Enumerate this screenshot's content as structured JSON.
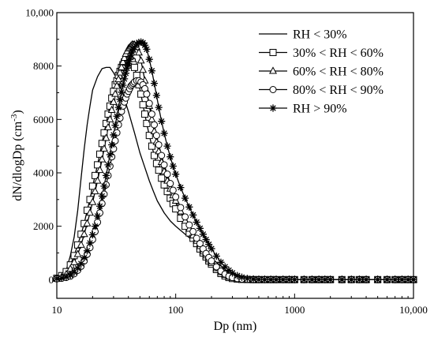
{
  "chart_data": {
    "type": "line",
    "xscale": "log",
    "xlabel": "Dp (nm)",
    "ylabel_main": "dN/dlogDp (cm",
    "ylabel_sup": "-3",
    "ylabel_close": ")",
    "xlim": [
      10,
      10000
    ],
    "ylim": [
      -700,
      10000
    ],
    "x_ticks": [
      10,
      100,
      1000,
      10000
    ],
    "x_tick_labels": [
      "10",
      "100",
      "1000",
      "10,000"
    ],
    "y_ticks": [
      0,
      2000,
      4000,
      6000,
      8000,
      10000
    ],
    "y_tick_labels": [
      "0",
      "2000",
      "4000",
      "6000",
      "8000",
      "10,000"
    ],
    "legend_position": "top-right",
    "series": [
      {
        "name": "RH < 30%",
        "marker": "none",
        "color": "#000000",
        "x": [
          10,
          11,
          12,
          13,
          14,
          15,
          16,
          17,
          18,
          19,
          20,
          22,
          24,
          26,
          28,
          30,
          33,
          36,
          40,
          45,
          50,
          55,
          60,
          65,
          70,
          80,
          90,
          100,
          120,
          140,
          160,
          180,
          200,
          250,
          300,
          350,
          400,
          500,
          1000,
          2000,
          5000,
          10000
        ],
        "y": [
          0,
          80,
          350,
          900,
          1600,
          2600,
          3800,
          4900,
          5800,
          6500,
          7100,
          7600,
          7900,
          7950,
          7950,
          7750,
          7400,
          6950,
          6300,
          5500,
          4750,
          4200,
          3700,
          3300,
          2950,
          2500,
          2200,
          2000,
          1700,
          1450,
          1200,
          1000,
          800,
          450,
          150,
          40,
          10,
          0,
          0,
          0,
          0,
          0
        ]
      },
      {
        "name": "30% < RH < 60%",
        "marker": "square",
        "color": "#000000",
        "x": [
          10,
          11,
          12,
          13,
          14,
          15,
          16,
          17,
          18,
          19,
          20,
          21,
          22,
          23,
          24,
          25,
          26,
          27,
          28,
          29,
          30,
          31,
          32,
          33,
          34,
          35,
          36,
          37,
          38,
          39,
          40,
          41,
          42,
          43,
          44,
          45,
          47,
          49,
          51,
          53,
          55,
          57,
          60,
          63,
          66,
          69,
          72,
          76,
          80,
          85,
          90,
          95,
          100,
          110,
          120,
          130,
          140,
          150,
          160,
          170,
          180,
          190,
          200,
          220,
          240,
          260,
          280,
          300,
          330,
          360,
          400,
          450,
          500,
          560,
          630,
          700,
          800,
          900,
          1000,
          1200,
          1400,
          1600,
          1800,
          2000,
          2500,
          3000,
          3500,
          4000,
          5000,
          6000,
          7000,
          8000,
          9000,
          10000
        ],
        "y": [
          50,
          150,
          300,
          550,
          900,
          1300,
          1700,
          2100,
          2600,
          3000,
          3500,
          3900,
          4300,
          4700,
          5100,
          5500,
          5850,
          6200,
          6500,
          6800,
          7050,
          7300,
          7450,
          7650,
          7800,
          7950,
          8050,
          8150,
          8200,
          8250,
          8250,
          8250,
          8200,
          8150,
          8050,
          7950,
          7650,
          7300,
          6950,
          6550,
          6200,
          5850,
          5400,
          5000,
          4650,
          4350,
          4100,
          3800,
          3550,
          3300,
          3050,
          2850,
          2650,
          2300,
          2000,
          1750,
          1550,
          1350,
          1150,
          1000,
          850,
          700,
          580,
          380,
          230,
          140,
          80,
          45,
          20,
          10,
          5,
          0,
          0,
          0,
          0,
          0,
          0,
          0,
          0,
          0,
          0,
          0,
          0,
          0,
          0,
          0,
          0,
          0,
          0,
          0,
          0,
          0,
          0,
          0
        ]
      },
      {
        "name": "60% < RH < 80%",
        "marker": "triangle",
        "color": "#000000",
        "x": [
          10,
          11,
          12,
          13,
          14,
          15,
          16,
          17,
          18,
          19,
          20,
          21,
          22,
          23,
          24,
          25,
          26,
          27,
          28,
          29,
          30,
          31,
          32,
          33,
          34,
          35,
          36,
          37,
          38,
          39,
          40,
          41,
          42,
          43,
          44,
          45,
          47,
          49,
          51,
          53,
          55,
          57,
          60,
          63,
          66,
          69,
          72,
          76,
          80,
          85,
          90,
          95,
          100,
          110,
          120,
          130,
          140,
          150,
          160,
          170,
          180,
          190,
          200,
          220,
          240,
          260,
          280,
          300,
          330,
          360,
          400,
          450,
          500,
          560,
          630,
          700,
          800,
          900,
          1000,
          1200,
          1400,
          1600,
          1800,
          2000,
          2500,
          3000,
          3500,
          4000,
          5000,
          6000,
          7000,
          8000,
          9000,
          10000
        ],
        "y": [
          50,
          100,
          200,
          400,
          650,
          950,
          1300,
          1700,
          2100,
          2500,
          2900,
          3300,
          3700,
          4100,
          4500,
          4900,
          5300,
          5700,
          6000,
          6350,
          6650,
          6950,
          7250,
          7500,
          7750,
          7950,
          8150,
          8300,
          8450,
          8550,
          8650,
          8700,
          8750,
          8800,
          8800,
          8800,
          8700,
          8500,
          8200,
          7850,
          7450,
          7050,
          6500,
          6000,
          5550,
          5150,
          4800,
          4400,
          4050,
          3700,
          3400,
          3150,
          2950,
          2550,
          2200,
          1900,
          1650,
          1450,
          1250,
          1050,
          900,
          750,
          620,
          420,
          270,
          170,
          100,
          60,
          30,
          15,
          5,
          0,
          0,
          0,
          0,
          0,
          0,
          0,
          0,
          0,
          0,
          0,
          0,
          0,
          0,
          0,
          0,
          0,
          0,
          0,
          0,
          0,
          0,
          0
        ]
      },
      {
        "name": "80% < RH < 90%",
        "marker": "circle",
        "color": "#000000",
        "x": [
          10,
          11,
          12,
          13,
          14,
          15,
          16,
          17,
          18,
          19,
          20,
          21,
          22,
          23,
          24,
          25,
          26,
          27,
          28,
          29,
          30,
          31,
          32,
          33,
          34,
          35,
          36,
          37,
          38,
          39,
          40,
          41,
          42,
          43,
          44,
          45,
          47,
          49,
          51,
          53,
          55,
          57,
          60,
          63,
          66,
          69,
          72,
          76,
          80,
          85,
          90,
          95,
          100,
          110,
          120,
          130,
          140,
          150,
          160,
          170,
          180,
          190,
          200,
          220,
          240,
          260,
          280,
          300,
          330,
          360,
          400,
          450,
          500,
          560,
          630,
          700,
          800,
          900,
          1000,
          1200,
          1400,
          1600,
          1800,
          2000,
          2500,
          3000,
          3500,
          4000,
          5000,
          6000,
          7000,
          8000,
          9000,
          10000
        ],
        "y": [
          30,
          50,
          80,
          130,
          220,
          350,
          500,
          700,
          950,
          1200,
          1500,
          1800,
          2150,
          2500,
          2850,
          3200,
          3550,
          3900,
          4250,
          4600,
          4900,
          5200,
          5500,
          5800,
          6050,
          6300,
          6500,
          6650,
          6800,
          6950,
          7050,
          7150,
          7250,
          7300,
          7350,
          7400,
          7450,
          7450,
          7400,
          7300,
          7150,
          6950,
          6600,
          6200,
          5800,
          5400,
          5050,
          4650,
          4300,
          3950,
          3600,
          3350,
          3100,
          2700,
          2350,
          2050,
          1800,
          1550,
          1350,
          1150,
          980,
          830,
          700,
          480,
          320,
          210,
          130,
          80,
          40,
          20,
          8,
          0,
          0,
          0,
          0,
          0,
          0,
          0,
          0,
          0,
          0,
          0,
          0,
          0,
          0,
          0,
          0,
          0,
          0,
          0,
          0,
          0,
          0,
          0
        ]
      },
      {
        "name": "RH > 90%",
        "marker": "star",
        "color": "#000000",
        "x": [
          10,
          11,
          12,
          13,
          14,
          15,
          16,
          17,
          18,
          19,
          20,
          21,
          22,
          23,
          24,
          25,
          26,
          27,
          28,
          29,
          30,
          31,
          32,
          33,
          34,
          35,
          36,
          37,
          38,
          39,
          40,
          41,
          42,
          43,
          44,
          45,
          47,
          49,
          51,
          53,
          55,
          57,
          60,
          63,
          66,
          69,
          72,
          76,
          80,
          85,
          90,
          95,
          100,
          110,
          120,
          130,
          140,
          150,
          160,
          170,
          180,
          190,
          200,
          220,
          240,
          260,
          280,
          300,
          330,
          360,
          400,
          450,
          500,
          560,
          630,
          700,
          800,
          900,
          1000,
          1200,
          1400,
          1600,
          1800,
          2000,
          2500,
          3000,
          3500,
          4000,
          5000,
          6000,
          7000,
          8000,
          9000,
          10000
        ],
        "y": [
          40,
          60,
          100,
          170,
          280,
          430,
          600,
          820,
          1080,
          1370,
          1680,
          2000,
          2380,
          2750,
          3130,
          3500,
          3900,
          4300,
          4680,
          5050,
          5420,
          5780,
          6120,
          6450,
          6750,
          7020,
          7280,
          7520,
          7730,
          7920,
          8100,
          8250,
          8400,
          8520,
          8620,
          8700,
          8820,
          8880,
          8900,
          8870,
          8780,
          8630,
          8250,
          7820,
          7350,
          6900,
          6450,
          5930,
          5480,
          5000,
          4600,
          4250,
          3950,
          3450,
          3050,
          2720,
          2420,
          2150,
          1920,
          1700,
          1500,
          1320,
          1160,
          880,
          650,
          480,
          350,
          250,
          150,
          90,
          45,
          20,
          8,
          0,
          0,
          0,
          0,
          0,
          0,
          0,
          0,
          0,
          0,
          0,
          0,
          0,
          0,
          0,
          0,
          0,
          0,
          0,
          0,
          0
        ]
      }
    ]
  }
}
